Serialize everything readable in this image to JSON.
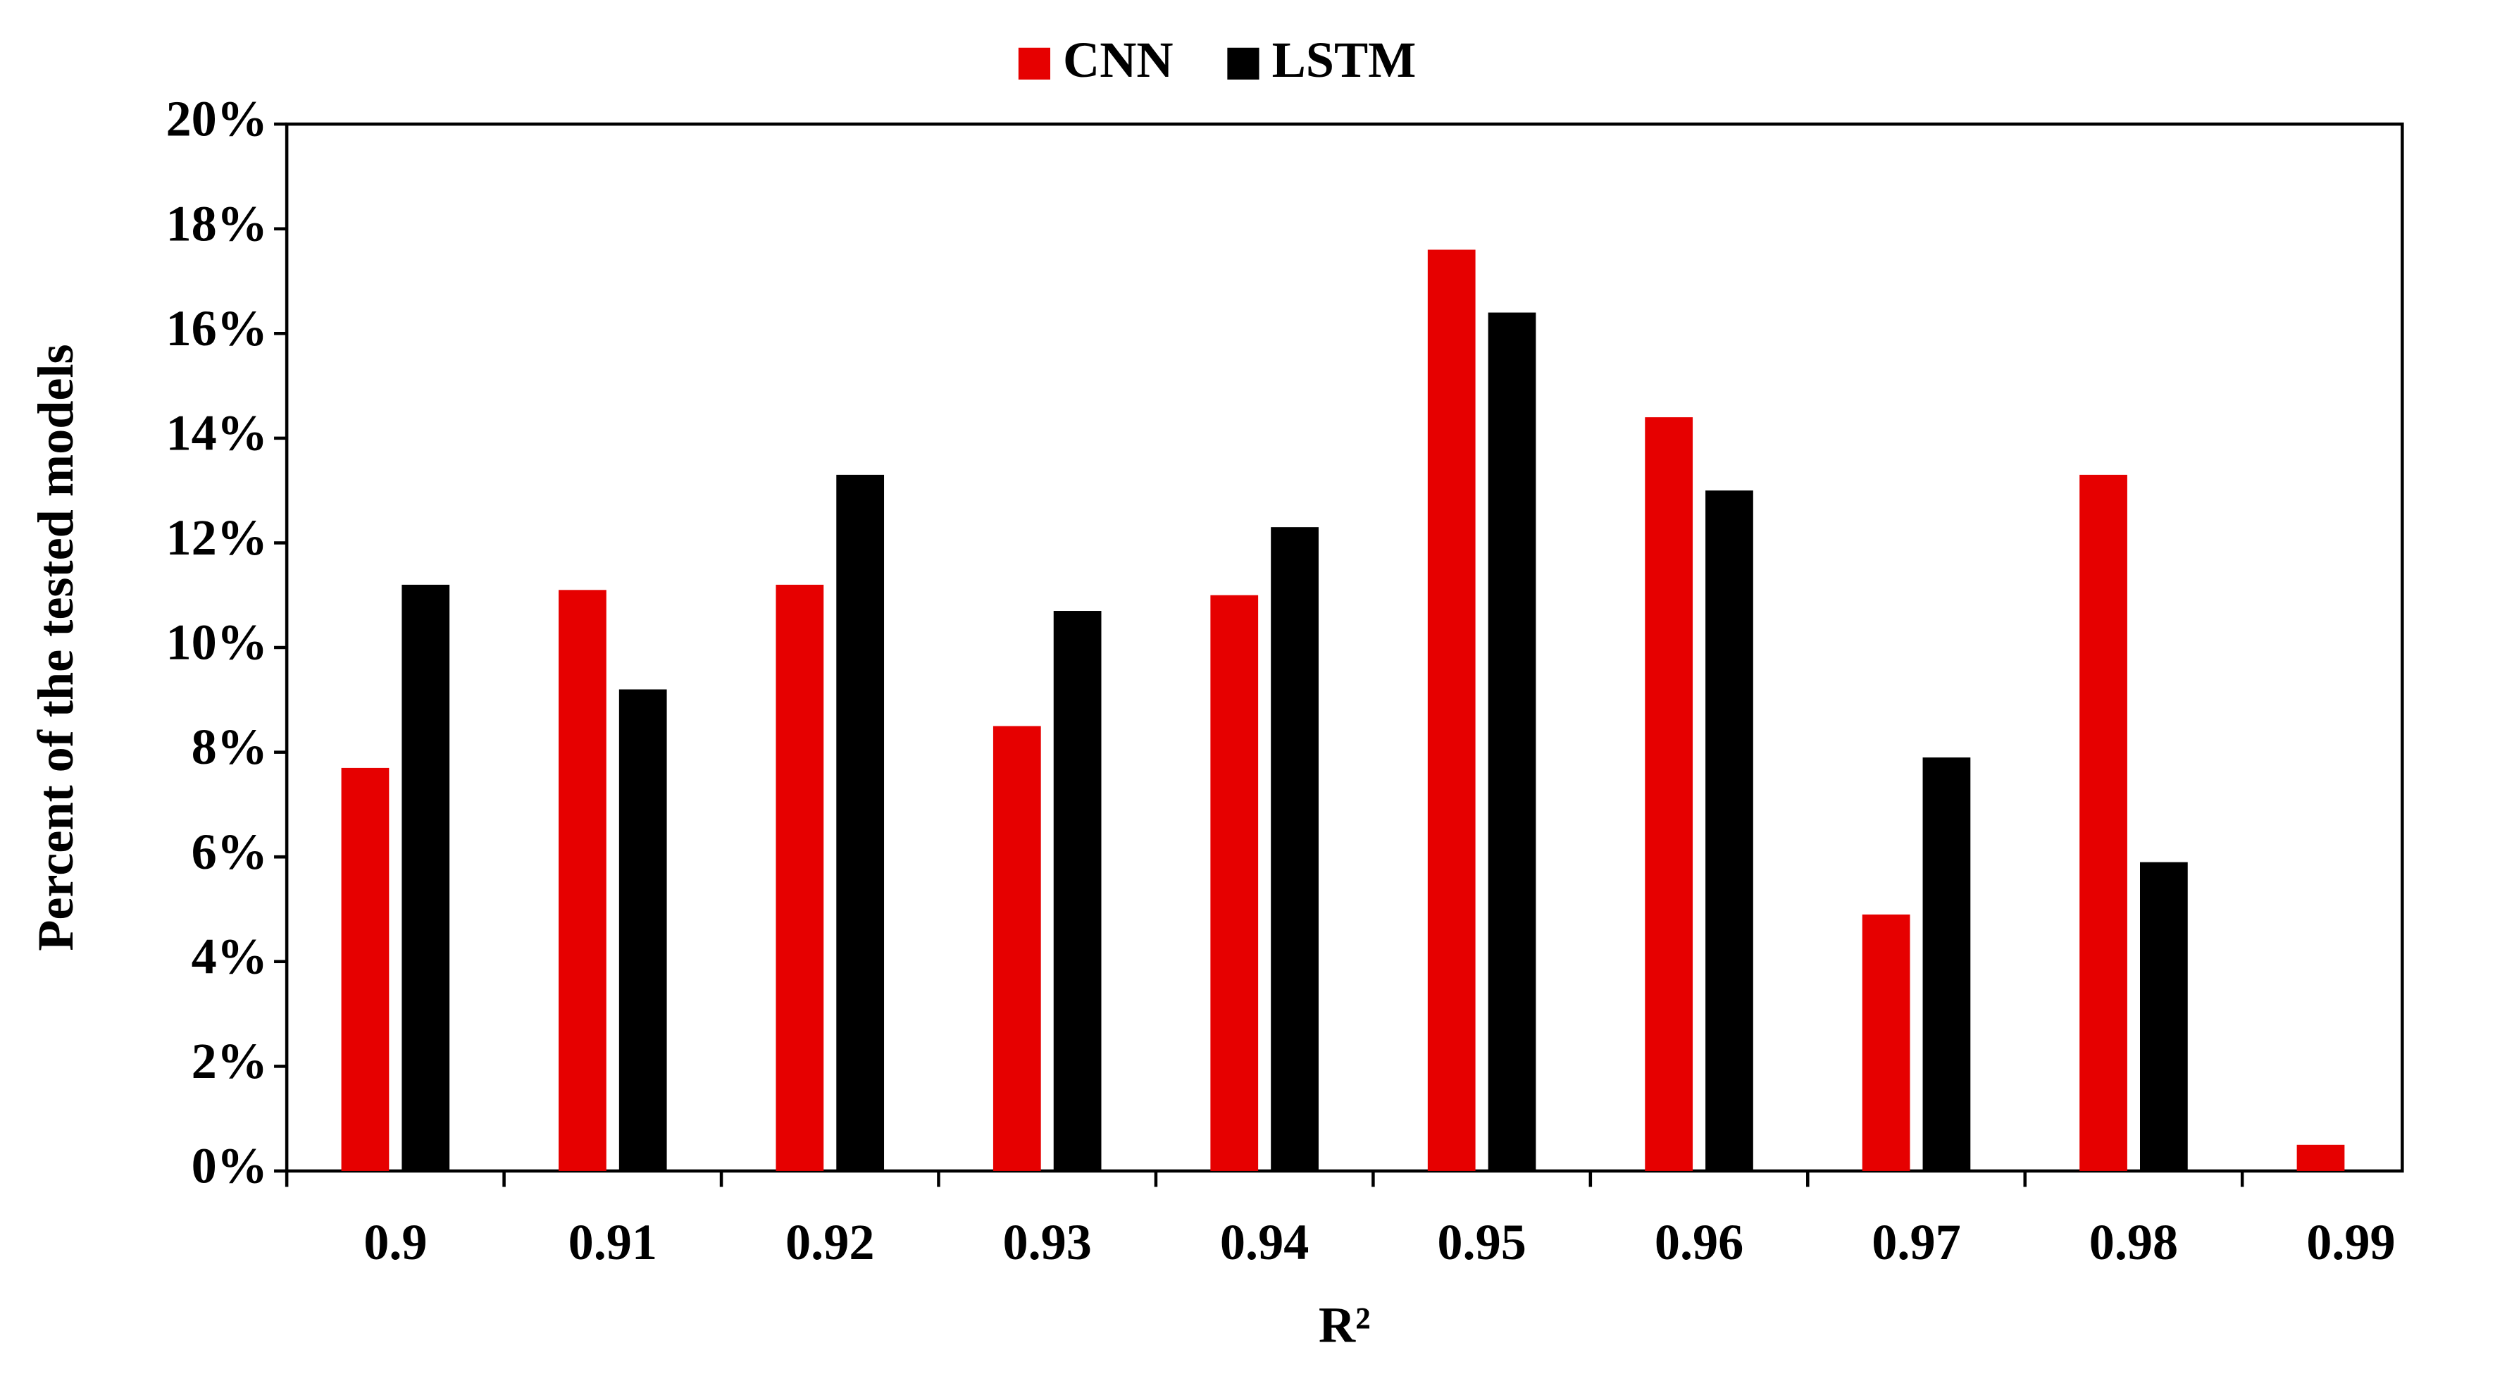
{
  "chart_data": {
    "type": "bar",
    "x_label": "R²",
    "y_label": "Percent of the tested models",
    "categories": [
      "0.9",
      "0.91",
      "0.92",
      "0.93",
      "0.94",
      "0.95",
      "0.96",
      "0.97",
      "0.98",
      "0.99"
    ],
    "series": [
      {
        "name": "CNN",
        "color": "#e60000",
        "values": [
          7.7,
          11.1,
          11.2,
          8.5,
          11.0,
          17.6,
          14.4,
          4.9,
          13.3,
          0.5
        ]
      },
      {
        "name": "LSTM",
        "color": "#000000",
        "values": [
          11.2,
          9.2,
          13.3,
          10.7,
          12.3,
          16.4,
          13.0,
          7.9,
          5.9,
          null
        ]
      }
    ],
    "ylim": [
      0,
      20
    ],
    "yticks": [
      {
        "value": 0,
        "label": "0%"
      },
      {
        "value": 2,
        "label": "2%"
      },
      {
        "value": 4,
        "label": "4%"
      },
      {
        "value": 6,
        "label": "6%"
      },
      {
        "value": 8,
        "label": "8%"
      },
      {
        "value": 10,
        "label": "10%"
      },
      {
        "value": 12,
        "label": "12%"
      },
      {
        "value": 14,
        "label": "14%"
      },
      {
        "value": 16,
        "label": "16%"
      },
      {
        "value": 18,
        "label": "18%"
      },
      {
        "value": 20,
        "label": "20%"
      }
    ],
    "grid": false,
    "legend": "top"
  }
}
